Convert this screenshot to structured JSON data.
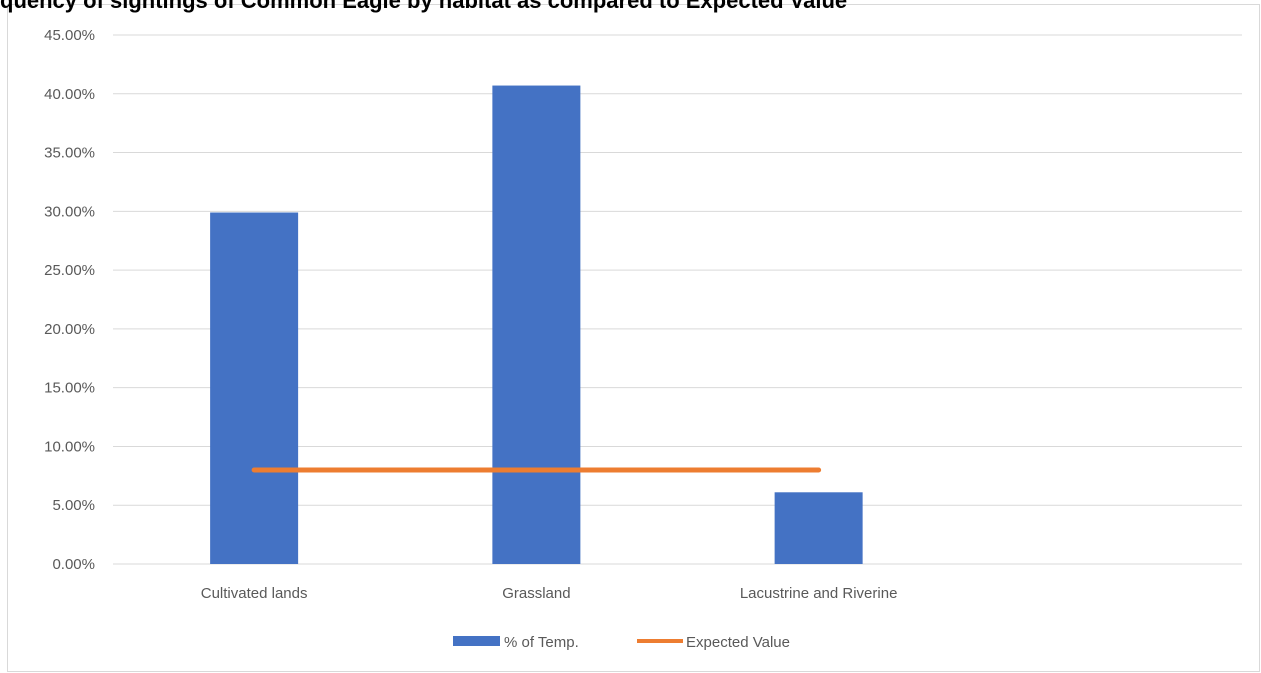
{
  "title": "quency of sightings of Common Eagle by habitat as compared to Expected Value",
  "chart_data": {
    "type": "bar",
    "categories": [
      "Cultivated lands",
      "Grassland",
      "Lacustrine and Riverine",
      ""
    ],
    "series": [
      {
        "name": "% of Temp.",
        "type": "bar",
        "values": [
          0.299,
          0.407,
          0.061,
          null
        ],
        "color": "#4472C4"
      },
      {
        "name": "Expected Value",
        "type": "line",
        "values": [
          0.08,
          0.08,
          0.08,
          null
        ],
        "color": "#ED7D31"
      }
    ],
    "ylim": [
      0,
      0.45
    ],
    "yticks": [
      "0.00%",
      "5.00%",
      "10.00%",
      "15.00%",
      "20.00%",
      "25.00%",
      "30.00%",
      "35.00%",
      "40.00%",
      "45.00%"
    ],
    "ytick_values": [
      0,
      0.05,
      0.1,
      0.15,
      0.2,
      0.25,
      0.3,
      0.35,
      0.4,
      0.45
    ],
    "grid": true,
    "legend": "bottom"
  }
}
